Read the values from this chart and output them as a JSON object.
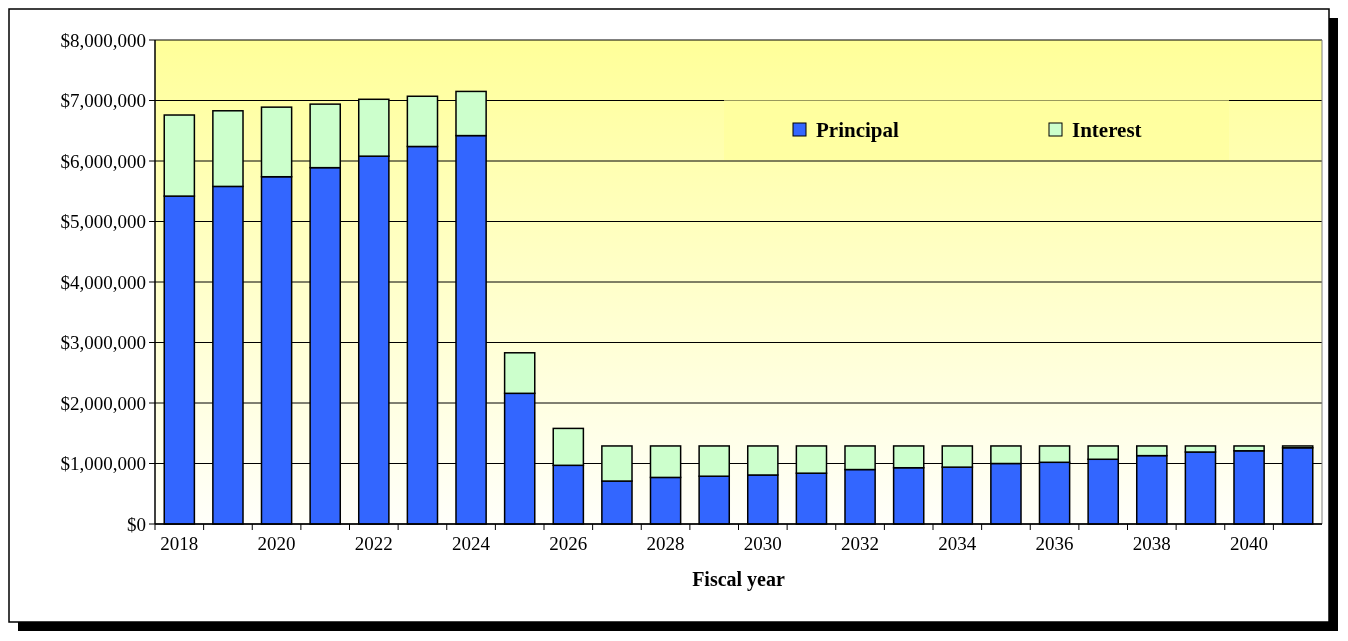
{
  "chart_data": {
    "type": "bar",
    "stacked": true,
    "xlabel": "Fiscal year",
    "categories": [
      "2018",
      null,
      "2020",
      null,
      "2022",
      null,
      "2024",
      null,
      "2026",
      null,
      "2028",
      null,
      "2030",
      null,
      "2032",
      null,
      "2034",
      null,
      "2036",
      null,
      "2038",
      null,
      "2040",
      null
    ],
    "series": [
      {
        "name": "Principal",
        "color": "#3366ff",
        "values": [
          5420000,
          5580000,
          5740000,
          5890000,
          6080000,
          6240000,
          6420000,
          2160000,
          970000,
          710000,
          770000,
          790000,
          810000,
          840000,
          900000,
          930000,
          940000,
          1000000,
          1020000,
          1070000,
          1130000,
          1190000,
          1210000,
          1260000
        ]
      },
      {
        "name": "Interest",
        "color": "#ccffcc",
        "values": [
          1340000,
          1250000,
          1150000,
          1050000,
          940000,
          830000,
          730000,
          670000,
          610000,
          580000,
          520000,
          500000,
          480000,
          450000,
          390000,
          360000,
          350000,
          290000,
          270000,
          220000,
          160000,
          100000,
          80000,
          30000
        ]
      }
    ],
    "ylim": [
      0,
      8000000
    ],
    "yticks": [
      {
        "value": 0,
        "label": "$0"
      },
      {
        "value": 1000000,
        "label": "$1,000,000"
      },
      {
        "value": 2000000,
        "label": "$2,000,000"
      },
      {
        "value": 3000000,
        "label": "$3,000,000"
      },
      {
        "value": 4000000,
        "label": "$4,000,000"
      },
      {
        "value": 5000000,
        "label": "$5,000,000"
      },
      {
        "value": 6000000,
        "label": "$6,000,000"
      },
      {
        "value": 7000000,
        "label": "$7,000,000"
      },
      {
        "value": 8000000,
        "label": "$8,000,000"
      }
    ],
    "grid": "y",
    "legend": "top right"
  }
}
